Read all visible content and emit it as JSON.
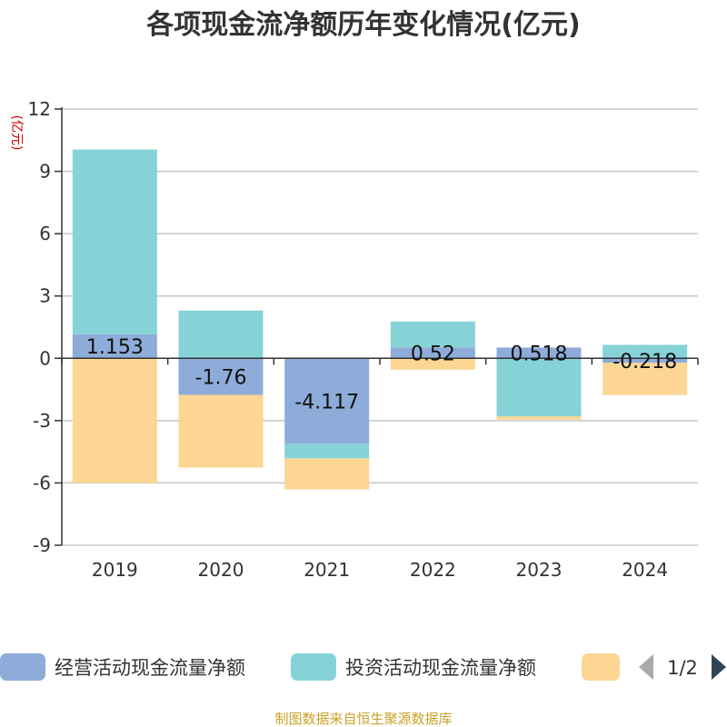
{
  "chart_data": {
    "type": "bar",
    "stacked": true,
    "title": "各项现金流净额历年变化情况(亿元)",
    "ylabel": "(亿元)",
    "categories": [
      "2019",
      "2020",
      "2021",
      "2022",
      "2023",
      "2024"
    ],
    "ylim": [
      -9,
      12
    ],
    "yticks": [
      12,
      9,
      6,
      3,
      0,
      -3,
      -6,
      -9
    ],
    "grid": true,
    "series": [
      {
        "name": "经营活动现金流量净额",
        "color": "#8eacd9",
        "values": [
          1.153,
          -1.76,
          -4.117,
          0.52,
          0.518,
          -0.218
        ]
      },
      {
        "name": "投资活动现金流量净额",
        "color": "#86d3d7",
        "values": [
          8.9,
          2.3,
          -0.7,
          1.25,
          -2.8,
          0.65
        ]
      },
      {
        "name": "",
        "color": "#fdd694",
        "values": [
          -6.0,
          -3.5,
          -1.5,
          -0.55,
          -0.15,
          -1.55
        ]
      }
    ],
    "data_labels": [
      "1.153",
      "-1.76",
      "-4.117",
      "0.52",
      "0.518",
      "-0.218"
    ],
    "legend": {
      "placement": "bottom",
      "page": "1/2"
    },
    "source": "制图数据来自恒生聚源数据库"
  }
}
